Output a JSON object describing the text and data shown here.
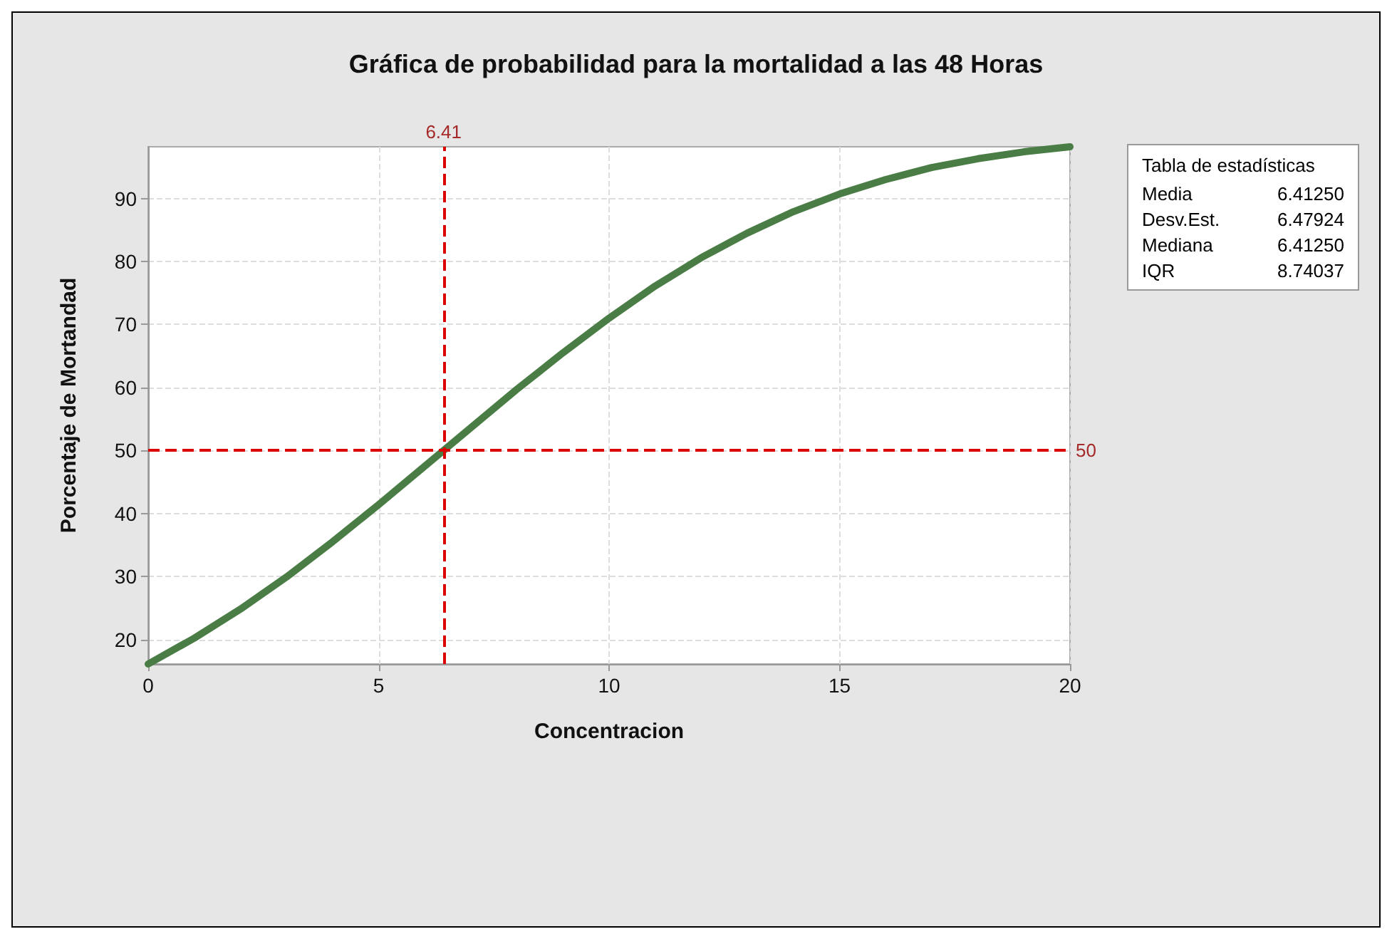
{
  "chart_data": {
    "type": "line",
    "title": "Gráfica de probabilidad para la mortalidad a las 48 Horas",
    "xlabel": "Concentracion",
    "ylabel": "Porcentaje de Mortandad",
    "x": [
      0,
      1,
      2,
      3,
      4,
      5,
      6,
      7,
      8,
      9,
      10,
      11,
      12,
      13,
      14,
      15,
      16,
      17,
      18,
      19,
      20
    ],
    "series": [
      {
        "color": "#4a7d45",
        "values": [
          16.1,
          20.2,
          24.8,
          29.9,
          35.5,
          41.4,
          47.5,
          53.6,
          59.7,
          65.5,
          71.0,
          76.1,
          80.6,
          84.5,
          87.9,
          90.7,
          93.0,
          94.9,
          96.3,
          97.4,
          98.2
        ]
      }
    ],
    "xlim": [
      0,
      20
    ],
    "xticks": [
      0,
      5,
      10,
      15,
      20
    ],
    "ylim": [
      16.1,
      98.2
    ],
    "yticks": [
      20,
      30,
      40,
      50,
      60,
      70,
      80,
      90
    ],
    "grid": true,
    "marker": "none",
    "line_style": "solid",
    "ref_lines": [
      {
        "axis": "x",
        "value": 6.41,
        "label": "6.41",
        "color": "#dd0000",
        "line_style": "dashed"
      },
      {
        "axis": "y",
        "value": 50,
        "label": "50",
        "color": "#dd0000",
        "line_style": "dashed"
      }
    ],
    "annotations": [
      "Tabla de estadísticas",
      "Media",
      "6.41250",
      "Desv.Est.",
      "6.47924",
      "Mediana",
      "6.41250",
      "IQR",
      "8.74037"
    ]
  }
}
